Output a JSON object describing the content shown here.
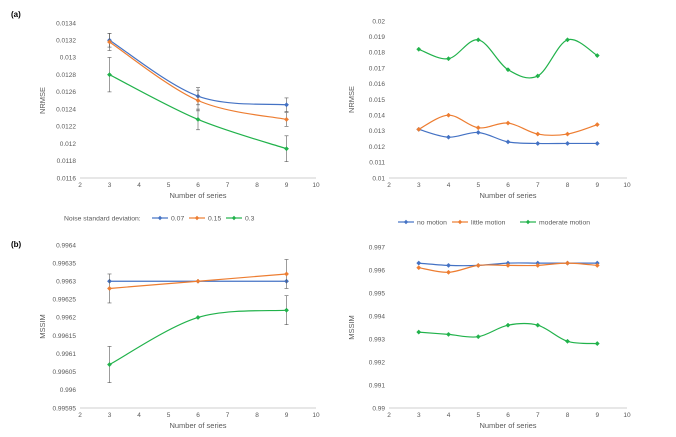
{
  "panel_labels": [
    "(a)",
    "(b)"
  ],
  "colors": {
    "blue": "#4472C4",
    "orange": "#ED7D31",
    "green": "#21B24B",
    "errorbar": "#595959",
    "grid": "#D9D9D9"
  },
  "legend_a": {
    "title": "Noise standard deviation:",
    "entries": [
      "0.07",
      "0.15",
      "0.3"
    ]
  },
  "legend_b": {
    "entries": [
      "no motion",
      "little motion",
      "moderate motion"
    ]
  },
  "chart_data": [
    {
      "id": "a-left",
      "type": "line",
      "xlabel": "Number of series",
      "ylabel": "NRMSE",
      "xlim": [
        2,
        10
      ],
      "xticks": [
        2,
        3,
        4,
        5,
        6,
        7,
        8,
        9,
        10
      ],
      "ylim": [
        0.0116,
        0.0134
      ],
      "yticks": [
        "0.0116",
        "0.0118",
        "0.012",
        "0.0122",
        "0.0124",
        "0.0126",
        "0.0128",
        "0.013",
        "0.0132",
        "0.0134"
      ],
      "grid": false,
      "x": [
        3,
        6,
        9
      ],
      "series": [
        {
          "name": "0.07",
          "color": "#4472C4",
          "marker": "diamond",
          "values": [
            0.0132,
            0.01255,
            0.01245
          ],
          "err": [
            8e-05,
            0.0001,
            8e-05
          ]
        },
        {
          "name": "0.15",
          "color": "#ED7D31",
          "marker": "diamond",
          "values": [
            0.01318,
            0.0125,
            0.01228
          ],
          "err": [
            0.0001,
            0.00012,
            8e-05
          ]
        },
        {
          "name": "0.3",
          "color": "#21B24B",
          "marker": "diamond",
          "values": [
            0.0128,
            0.01228,
            0.01194
          ],
          "err": [
            0.0002,
            0.00012,
            0.00015
          ]
        }
      ]
    },
    {
      "id": "a-right",
      "type": "line",
      "xlabel": "Number of series",
      "ylabel": "NRMSE",
      "xlim": [
        2,
        10
      ],
      "xticks": [
        2,
        3,
        4,
        5,
        6,
        7,
        8,
        9,
        10
      ],
      "ylim": [
        0.01,
        0.02
      ],
      "yticks": [
        "0.01",
        "0.011",
        "0.012",
        "0.013",
        "0.014",
        "0.015",
        "0.016",
        "0.017",
        "0.018",
        "0.019",
        "0.02"
      ],
      "grid": false,
      "x": [
        3,
        4,
        5,
        6,
        7,
        8,
        9
      ],
      "series": [
        {
          "name": "no motion",
          "color": "#4472C4",
          "marker": "diamond",
          "values": [
            0.0131,
            0.0126,
            0.0129,
            0.0123,
            0.0122,
            0.0122,
            0.0122
          ]
        },
        {
          "name": "little motion",
          "color": "#ED7D31",
          "marker": "diamond",
          "values": [
            0.0131,
            0.014,
            0.0132,
            0.0135,
            0.0128,
            0.0128,
            0.0134
          ]
        },
        {
          "name": "moderate motion",
          "color": "#21B24B",
          "marker": "diamond",
          "values": [
            0.0182,
            0.0176,
            0.0188,
            0.0169,
            0.0165,
            0.0188,
            0.0178
          ]
        }
      ]
    },
    {
      "id": "b-left",
      "type": "line",
      "xlabel": "Number of series",
      "ylabel": "MSSIM",
      "xlim": [
        2,
        10
      ],
      "xticks": [
        2,
        3,
        4,
        5,
        6,
        7,
        8,
        9,
        10
      ],
      "ylim": [
        0.99595,
        0.9964
      ],
      "yticks": [
        "0.99595",
        "0.996",
        "0.99605",
        "0.9961",
        "0.99615",
        "0.9962",
        "0.99625",
        "0.9963",
        "0.99635",
        "0.9964"
      ],
      "grid": false,
      "x": [
        3,
        6,
        9
      ],
      "series": [
        {
          "name": "0.07",
          "color": "#4472C4",
          "marker": "diamond",
          "values": [
            0.9963,
            0.9963,
            0.9963
          ],
          "err": [
            0,
            0,
            0
          ]
        },
        {
          "name": "0.15",
          "color": "#ED7D31",
          "marker": "diamond",
          "values": [
            0.99628,
            0.9963,
            0.99632
          ],
          "err": [
            4e-05,
            0,
            4e-05
          ]
        },
        {
          "name": "0.3",
          "color": "#21B24B",
          "marker": "diamond",
          "values": [
            0.99607,
            0.9962,
            0.99622
          ],
          "err": [
            5e-05,
            0,
            4e-05
          ]
        }
      ]
    },
    {
      "id": "b-right",
      "type": "line",
      "xlabel": "Number of series",
      "ylabel": "MSSIM",
      "xlim": [
        2,
        10
      ],
      "xticks": [
        2,
        3,
        4,
        5,
        6,
        7,
        8,
        9,
        10
      ],
      "ylim": [
        0.99,
        0.997
      ],
      "yticks": [
        "0.99",
        "0.991",
        "0.992",
        "0.993",
        "0.994",
        "0.995",
        "0.996",
        "0.997"
      ],
      "grid": false,
      "x": [
        3,
        4,
        5,
        6,
        7,
        8,
        9
      ],
      "series": [
        {
          "name": "no motion",
          "color": "#4472C4",
          "marker": "diamond",
          "values": [
            0.9963,
            0.9962,
            0.9962,
            0.9963,
            0.9963,
            0.9963,
            0.9963
          ]
        },
        {
          "name": "little motion",
          "color": "#ED7D31",
          "marker": "diamond",
          "values": [
            0.9961,
            0.9959,
            0.9962,
            0.9962,
            0.9962,
            0.9963,
            0.9962
          ]
        },
        {
          "name": "moderate motion",
          "color": "#21B24B",
          "marker": "diamond",
          "values": [
            0.9933,
            0.9932,
            0.9931,
            0.9936,
            0.9936,
            0.9929,
            0.9928
          ]
        }
      ]
    }
  ]
}
